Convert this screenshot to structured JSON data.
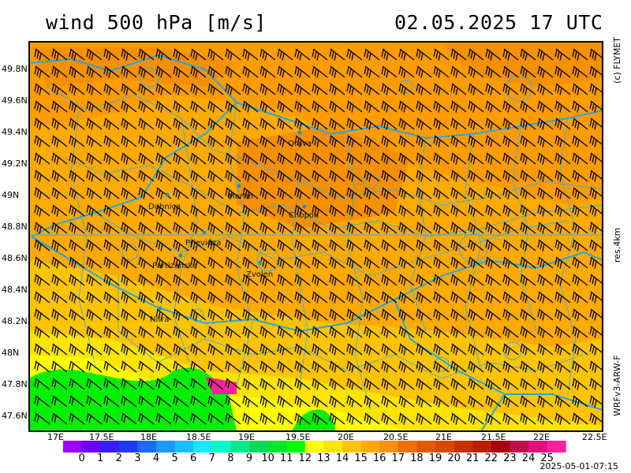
{
  "title": {
    "left": "wind 500 hPa [m/s]",
    "right": "02.05.2025   17 UTC"
  },
  "side_labels": {
    "top": "(c) FLYMET",
    "middle": "res.4km",
    "bottom": "WRFv3-ARW-F"
  },
  "footer": "2025-05-01-07:15",
  "lat_labels": [
    "49.8N",
    "49.6N",
    "49.4N",
    "49.2N",
    "49N",
    "48.8N",
    "48.6N",
    "48.4N",
    "48.2N",
    "48N",
    "47.8N",
    "47.6N"
  ],
  "lon_labels": [
    "17E",
    "17.5E",
    "18E",
    "18.5E",
    "19E",
    "19.5E",
    "20E",
    "20.5E",
    "21E",
    "21.5E",
    "22E",
    "22.5E"
  ],
  "colorbar": {
    "labels": [
      "0",
      "1",
      "2",
      "3",
      "4",
      "5",
      "6",
      "7",
      "8",
      "9",
      "10",
      "11",
      "12",
      "13",
      "14",
      "15",
      "16",
      "17",
      "18",
      "19",
      "20",
      "21",
      "22",
      "23",
      "24",
      "25"
    ],
    "colors": [
      "#9b00ff",
      "#6a00ff",
      "#3b1cff",
      "#1c3bff",
      "#1e6bff",
      "#1c98ff",
      "#18c0ff",
      "#19e8ff",
      "#00ffc8",
      "#00e88c",
      "#00dc5a",
      "#00e62a",
      "#00ff00",
      "#ffff00",
      "#ffe400",
      "#ffc400",
      "#ffaa00",
      "#ff9000",
      "#f07000",
      "#e05a00",
      "#d84800",
      "#c83000",
      "#b82000",
      "#a80010",
      "#c0104a",
      "#e0107a",
      "#ff20a0"
    ]
  },
  "cities": [
    {
      "name": "Orava"
    },
    {
      "name": "Dubnica"
    },
    {
      "name": "Martin"
    },
    {
      "name": "Chopok"
    },
    {
      "name": "Prievidza"
    },
    {
      "name": "Partizánske"
    },
    {
      "name": "Zvolen"
    },
    {
      "name": "Nitra"
    }
  ]
}
